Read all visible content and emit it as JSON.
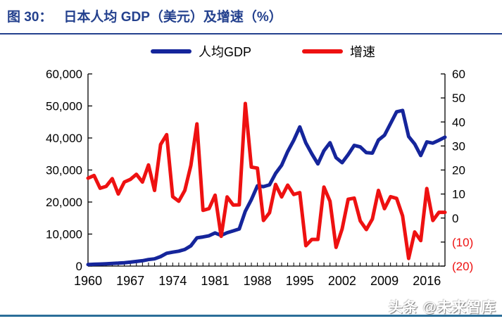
{
  "header": {
    "title_prefix": "图 30：",
    "title": "日本人均 GDP（美元）及增速（%）"
  },
  "legend": [
    {
      "label": "人均GDP",
      "color": "#15259B"
    },
    {
      "label": "增速",
      "color": "#EE1111"
    }
  ],
  "watermark": "头条 @未来智库",
  "colors": {
    "title_blue": "#24418E",
    "gdp_line": "#15259B",
    "growth_line": "#EE1111",
    "axis": "#000000",
    "negative_tick": "#EE1111",
    "footer_rule": "#2B6E99"
  },
  "chart_data": {
    "type": "line",
    "title": "日本人均 GDP（美元）及增速（%）",
    "grid": false,
    "legend_position": "top",
    "years": [
      1960,
      1961,
      1962,
      1963,
      1964,
      1965,
      1966,
      1967,
      1968,
      1969,
      1970,
      1971,
      1972,
      1973,
      1974,
      1975,
      1976,
      1977,
      1978,
      1979,
      1980,
      1981,
      1982,
      1983,
      1984,
      1985,
      1986,
      1987,
      1988,
      1989,
      1990,
      1991,
      1992,
      1993,
      1994,
      1995,
      1996,
      1997,
      1998,
      1999,
      2000,
      2001,
      2002,
      2003,
      2004,
      2005,
      2006,
      2007,
      2008,
      2009,
      2010,
      2011,
      2012,
      2013,
      2014,
      2015,
      2016,
      2017,
      2018,
      2019
    ],
    "series": [
      {
        "name": "人均GDP",
        "axis": "left",
        "color": "#15259B",
        "values": [
          479,
          564,
          634,
          718,
          836,
          920,
          1058,
          1228,
          1451,
          1669,
          2038,
          2272,
          2967,
          3998,
          4354,
          4659,
          5197,
          6336,
          8821,
          9106,
          9465,
          10361,
          9578,
          10425,
          10985,
          11585,
          17112,
          20745,
          25059,
          24813,
          25371,
          28925,
          31465,
          35766,
          39269,
          43440,
          38437,
          35022,
          31903,
          36027,
          38532,
          33846,
          32289,
          34808,
          37689,
          37218,
          35434,
          35275,
          39339,
          40855,
          44508,
          48168,
          48603,
          40454,
          38109,
          34524,
          38762,
          38387,
          39290,
          40247
        ]
      },
      {
        "name": "增速",
        "axis": "right",
        "color": "#EE1111",
        "values": [
          16.6,
          17.7,
          12.4,
          13.2,
          16.4,
          10.0,
          15.0,
          16.1,
          18.2,
          15.0,
          22.1,
          11.5,
          30.6,
          34.7,
          8.9,
          7.0,
          11.5,
          21.9,
          39.2,
          3.2,
          3.9,
          9.5,
          -7.6,
          8.8,
          5.4,
          5.5,
          47.7,
          21.2,
          20.8,
          -1.0,
          2.2,
          14.0,
          8.8,
          13.7,
          9.8,
          10.6,
          -11.5,
          -8.9,
          -8.9,
          12.9,
          7.0,
          -12.2,
          -4.6,
          7.8,
          8.3,
          -1.2,
          -4.8,
          -0.4,
          11.5,
          3.9,
          8.9,
          8.2,
          0.9,
          -16.8,
          -5.8,
          -9.4,
          12.3,
          -1.0,
          2.4,
          2.4
        ]
      }
    ],
    "left_axis": {
      "min": 0,
      "max": 60000,
      "tick_values": [
        0,
        10000,
        20000,
        30000,
        40000,
        50000,
        60000
      ],
      "tick_labels": [
        "0",
        "10,000",
        "20,000",
        "30,000",
        "40,000",
        "50,000",
        "60,000"
      ]
    },
    "right_axis": {
      "min": -20,
      "max": 60,
      "tick_values": [
        -20,
        -10,
        0,
        10,
        20,
        30,
        40,
        50,
        60
      ],
      "tick_labels": [
        "(20)",
        "(10)",
        "0",
        "10",
        "20",
        "30",
        "40",
        "50",
        "60"
      ],
      "negative_color": "#EE1111"
    },
    "x_axis": {
      "tick_values": [
        1960,
        1967,
        1974,
        1981,
        1988,
        1995,
        2002,
        2009,
        2016
      ],
      "tick_labels": [
        "1960",
        "1967",
        "1974",
        "1981",
        "1988",
        "1995",
        "2002",
        "2009",
        "2016"
      ]
    }
  }
}
